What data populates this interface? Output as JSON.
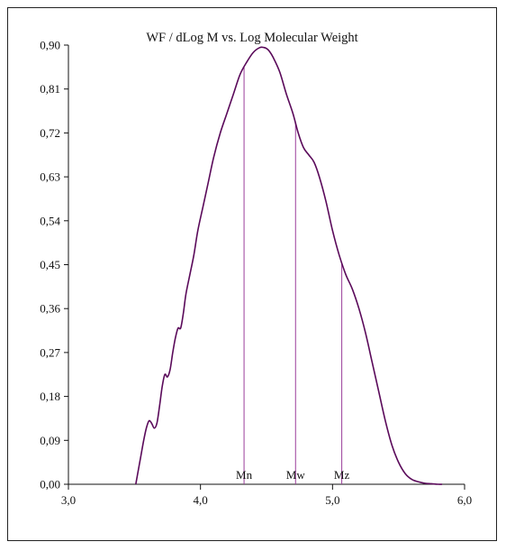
{
  "chart_data": {
    "type": "line",
    "title": "WF / dLog M vs. Log Molecular Weight",
    "xlabel": "",
    "ylabel": "",
    "xlim": [
      3.0,
      6.0
    ],
    "ylim": [
      0.0,
      0.9
    ],
    "xticks": [
      3.0,
      4.0,
      5.0,
      6.0
    ],
    "xtick_labels": [
      "3,0",
      "4,0",
      "5,0",
      "6,0"
    ],
    "yticks": [
      0.0,
      0.09,
      0.18,
      0.27,
      0.36,
      0.45,
      0.54,
      0.63,
      0.72,
      0.81,
      0.9
    ],
    "ytick_labels": [
      "0,00",
      "0,09",
      "0,18",
      "0,27",
      "0,36",
      "0,45",
      "0,54",
      "0,63",
      "0,72",
      "0,81",
      "0,90"
    ],
    "grid": false,
    "series": [
      {
        "color": "#5a0a5a",
        "x": [
          3.51,
          3.53,
          3.55,
          3.57,
          3.59,
          3.61,
          3.63,
          3.65,
          3.67,
          3.69,
          3.71,
          3.73,
          3.75,
          3.77,
          3.79,
          3.81,
          3.83,
          3.85,
          3.87,
          3.89,
          3.92,
          3.95,
          3.98,
          4.02,
          4.06,
          4.1,
          4.15,
          4.2,
          4.25,
          4.3,
          4.35,
          4.4,
          4.45,
          4.48,
          4.5,
          4.52,
          4.55,
          4.6,
          4.65,
          4.7,
          4.74,
          4.78,
          4.82,
          4.86,
          4.9,
          4.95,
          5.0,
          5.05,
          5.1,
          5.15,
          5.2,
          5.25,
          5.3,
          5.35,
          5.4,
          5.45,
          5.5,
          5.55,
          5.6,
          5.65,
          5.7,
          5.75,
          5.8,
          5.83
        ],
        "y": [
          0.0,
          0.03,
          0.06,
          0.09,
          0.115,
          0.13,
          0.125,
          0.115,
          0.125,
          0.16,
          0.2,
          0.225,
          0.22,
          0.235,
          0.27,
          0.3,
          0.32,
          0.32,
          0.35,
          0.39,
          0.43,
          0.47,
          0.52,
          0.57,
          0.62,
          0.67,
          0.72,
          0.76,
          0.8,
          0.84,
          0.865,
          0.885,
          0.895,
          0.895,
          0.893,
          0.888,
          0.875,
          0.845,
          0.8,
          0.76,
          0.72,
          0.69,
          0.675,
          0.66,
          0.63,
          0.58,
          0.52,
          0.47,
          0.43,
          0.4,
          0.36,
          0.31,
          0.25,
          0.19,
          0.13,
          0.08,
          0.045,
          0.022,
          0.01,
          0.005,
          0.002,
          0.001,
          0.0,
          0.0
        ]
      }
    ],
    "markers": [
      {
        "label": "Mn",
        "x": 4.33
      },
      {
        "label": "Mw",
        "x": 4.72
      },
      {
        "label": "Mz",
        "x": 5.07
      }
    ],
    "colors": {
      "curve": "#5a0a5a",
      "marker_line": "#9a3d9a",
      "axis": "#111111"
    }
  }
}
